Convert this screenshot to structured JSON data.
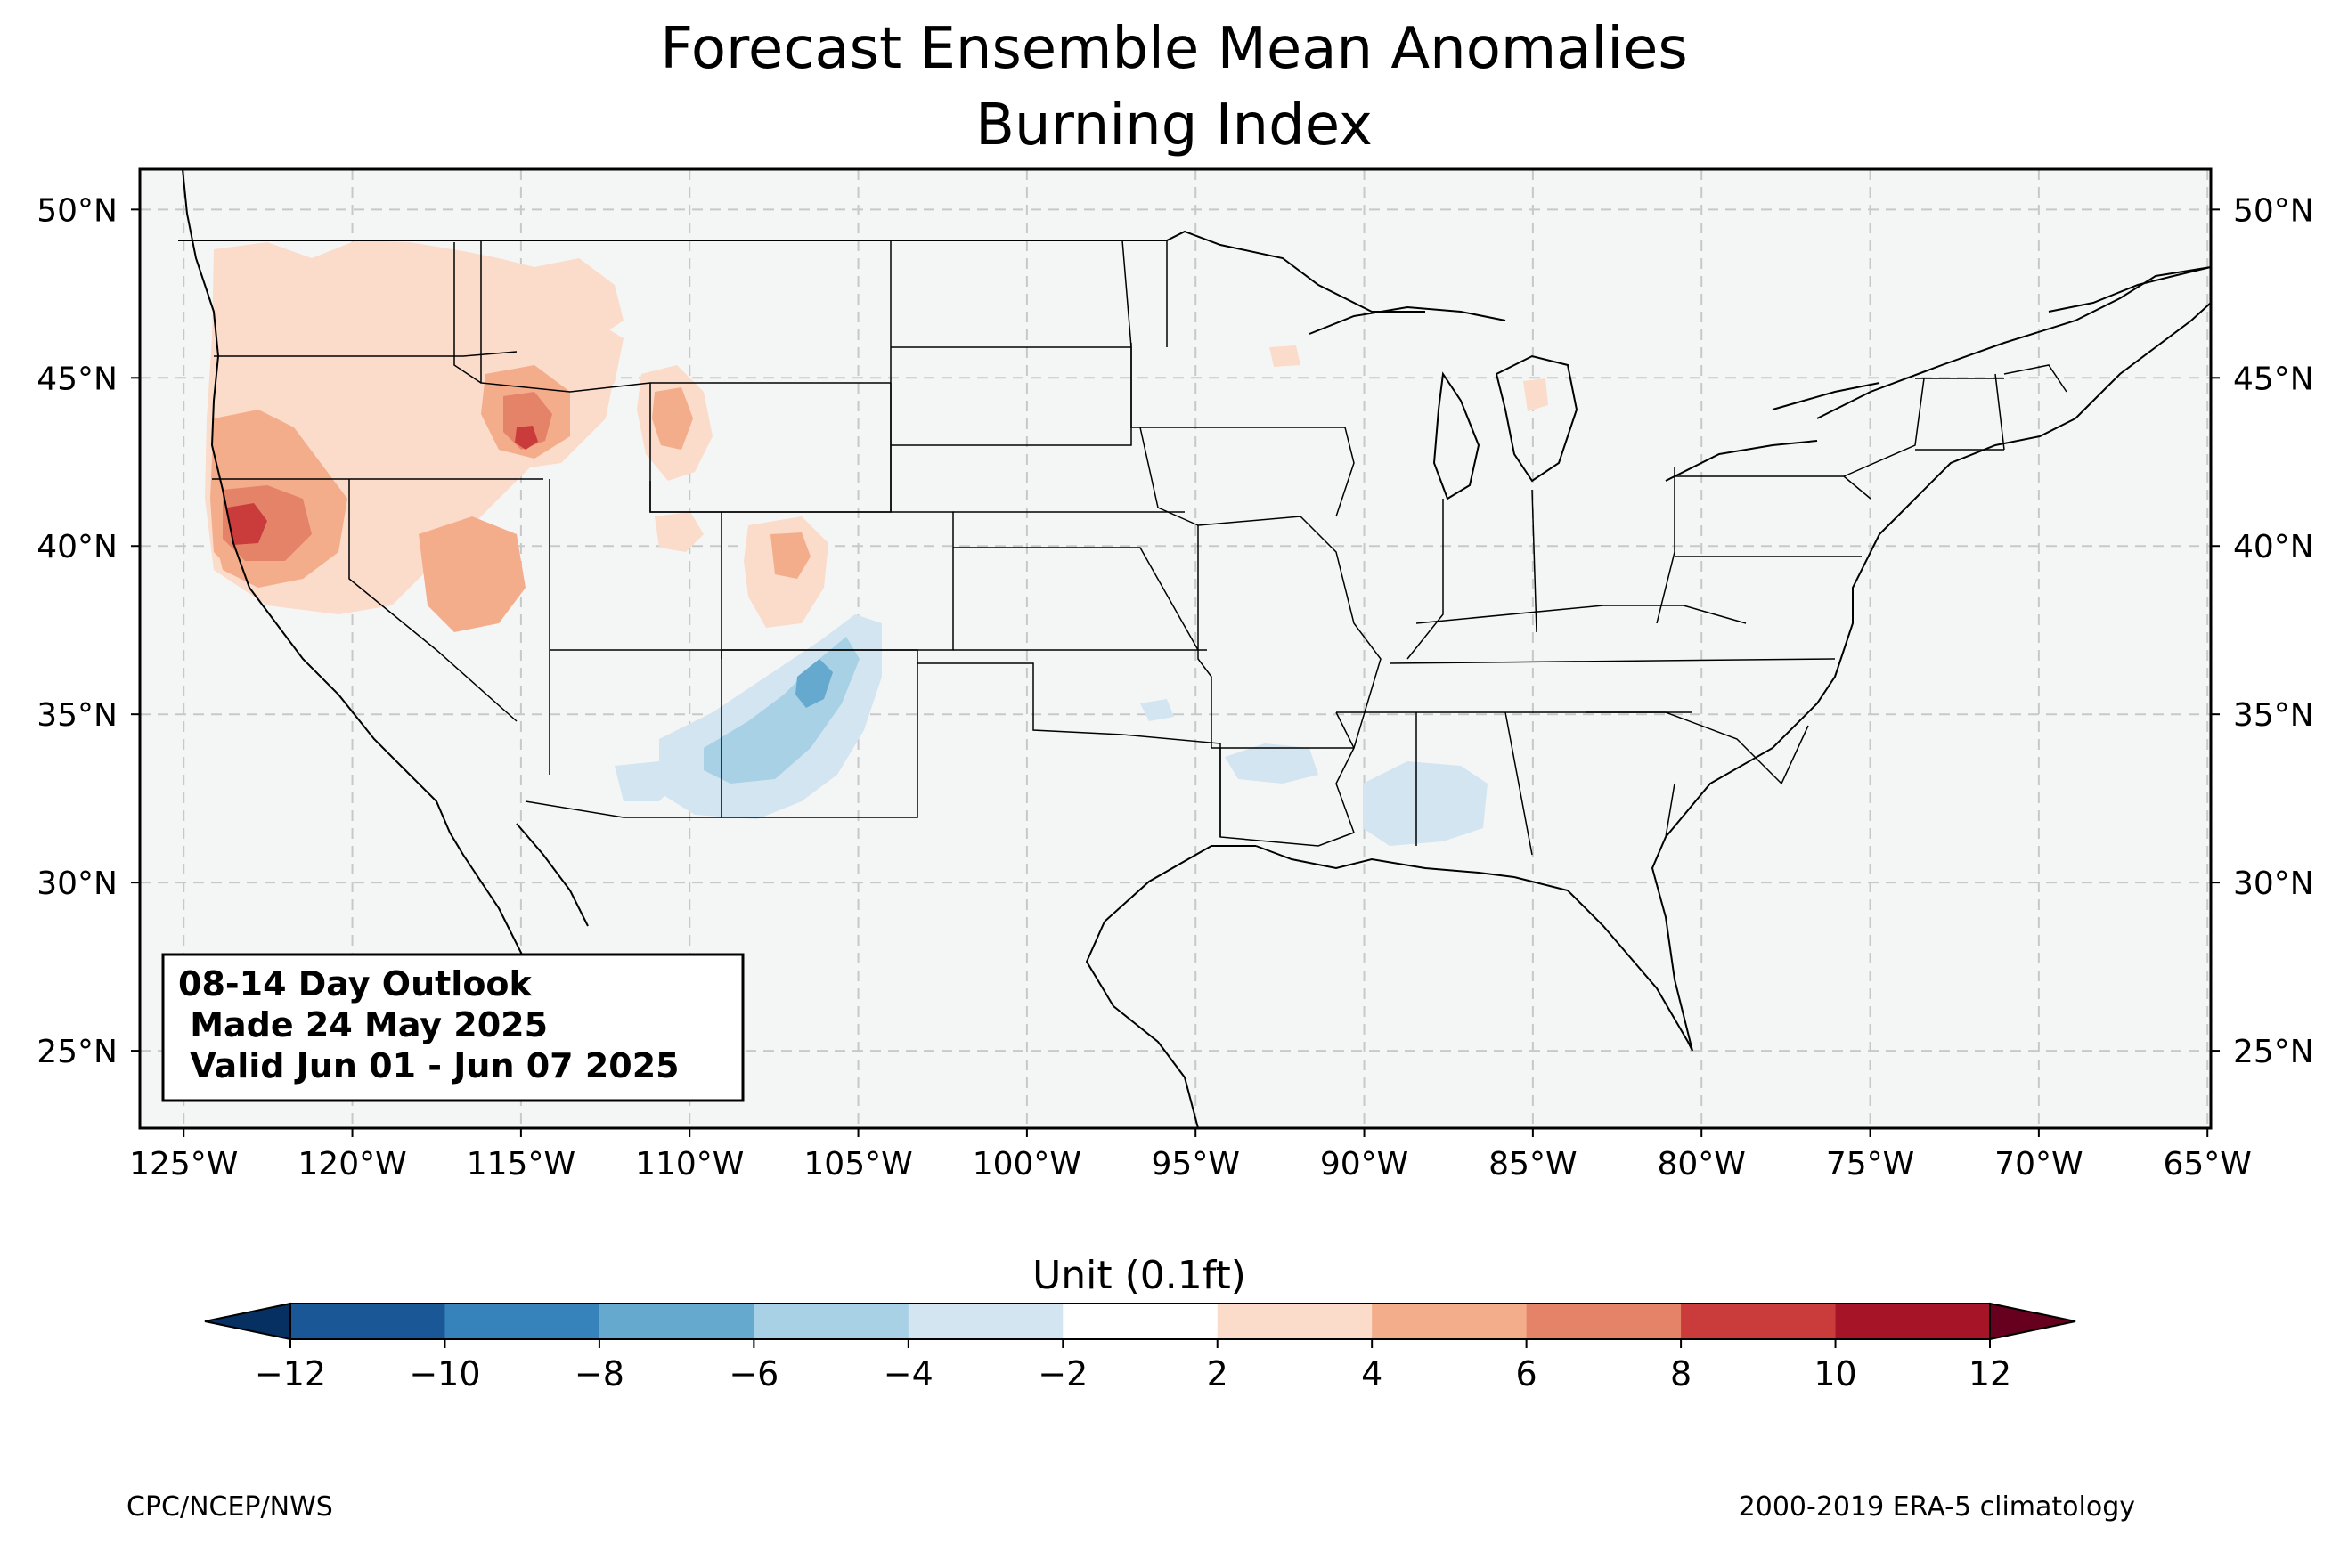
{
  "title": {
    "line1": "Forecast Ensemble Mean Anomalies",
    "line2": "Burning Index"
  },
  "map": {
    "lon_range": [
      -126.3,
      -64.9
    ],
    "lat_range": [
      22.7,
      51.2
    ],
    "lat_ticks": [
      {
        "value": 50,
        "label": "50°N"
      },
      {
        "value": 45,
        "label": "45°N"
      },
      {
        "value": 40,
        "label": "40°N"
      },
      {
        "value": 35,
        "label": "35°N"
      },
      {
        "value": 30,
        "label": "30°N"
      },
      {
        "value": 25,
        "label": "25°N"
      }
    ],
    "lon_ticks": [
      {
        "value": -125,
        "label": "125°W"
      },
      {
        "value": -120,
        "label": "120°W"
      },
      {
        "value": -115,
        "label": "115°W"
      },
      {
        "value": -110,
        "label": "110°W"
      },
      {
        "value": -105,
        "label": "105°W"
      },
      {
        "value": -100,
        "label": "100°W"
      },
      {
        "value": -95,
        "label": "95°W"
      },
      {
        "value": -90,
        "label": "90°W"
      },
      {
        "value": -85,
        "label": "85°W"
      },
      {
        "value": -80,
        "label": "80°W"
      },
      {
        "value": -75,
        "label": "75°W"
      },
      {
        "value": -70,
        "label": "70°W"
      },
      {
        "value": -65,
        "label": "65°W"
      }
    ],
    "gridlines": "dashed",
    "background_color": "#f4f6f6",
    "anomaly_areas": [
      {
        "region": "Pacific Northwest (Oregon/Washington)",
        "level": "2 to 4",
        "color": "#fbdbc9"
      },
      {
        "region": "Southern Oregon / Northern California",
        "level": "6 to 8",
        "color": "#e58368"
      },
      {
        "region": "Northern California coast",
        "level": "8 to 10",
        "color": "#ca3c3c"
      },
      {
        "region": "Central Idaho",
        "level": "8 to 10",
        "color": "#ca3c3c"
      },
      {
        "region": "Western Montana",
        "level": "2 to 4",
        "color": "#fbdbc9"
      },
      {
        "region": "Northern Nevada",
        "level": "4 to 6",
        "color": "#f3ad8b"
      },
      {
        "region": "Western Wyoming",
        "level": "4 to 6",
        "color": "#f3ad8b"
      },
      {
        "region": "Northern Colorado",
        "level": "2 to 4",
        "color": "#fbdbc9"
      },
      {
        "region": "Upper Michigan",
        "level": "2 to 4",
        "color": "#fbdbc9"
      },
      {
        "region": "Northern New Mexico",
        "level": "-6 to -4",
        "color": "#a8d1e6"
      },
      {
        "region": "Central New Mexico",
        "level": "-8 to -6",
        "color": "#66a9cf"
      },
      {
        "region": "Eastern Arizona",
        "level": "-4 to -2",
        "color": "#d3e5f0"
      },
      {
        "region": "Louisiana / Mississippi / Alabama",
        "level": "-4 to -2",
        "color": "#d3e5f0"
      }
    ]
  },
  "outlook_box": {
    "line1": "08-14 Day Outlook",
    "line2": " Made 24 May 2025",
    "line3": " Valid Jun 01 - Jun 07 2025"
  },
  "colorbar": {
    "label": "Unit (0.1ft)",
    "levels": [
      -12,
      -10,
      -8,
      -6,
      -4,
      -2,
      2,
      4,
      6,
      8,
      10,
      12
    ],
    "tick_labels": [
      "−12",
      "−10",
      "−8",
      "−6",
      "−4",
      "−2",
      "2",
      "4",
      "6",
      "8",
      "10",
      "12"
    ],
    "colors": [
      "#1a5796",
      "#3683bb",
      "#66a9cf",
      "#a8d1e6",
      "#d3e5f0",
      "#ffffff",
      "#fbdbc9",
      "#f3ad8b",
      "#e58368",
      "#ca3c3c",
      "#a61428"
    ],
    "under_color": "#053061",
    "over_color": "#67001f",
    "extend": "both"
  },
  "footer": {
    "left": "CPC/NCEP/NWS",
    "right": "2000-2019 ERA-5 climatology"
  }
}
